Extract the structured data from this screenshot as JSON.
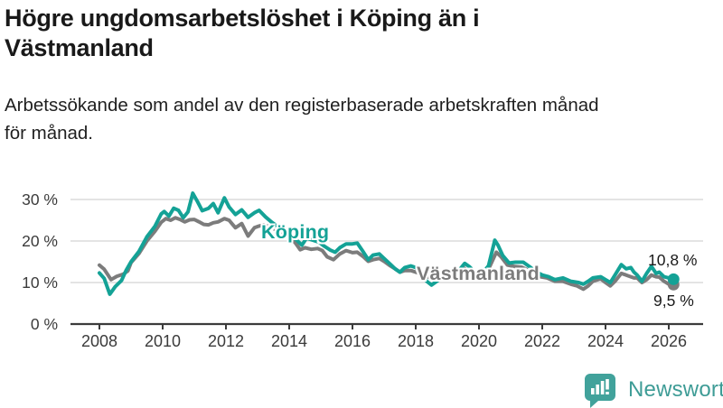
{
  "header": {
    "title_lines": [
      "Högre ungdomsarbetslöshet i Köping än i",
      "Västmanland"
    ],
    "subtitle_lines": [
      "Arbetssökande som andel av den registerbaserade arbetskraften månad",
      "för månad."
    ]
  },
  "footer": {
    "brand": "Newsworthy",
    "icon": "newsworthy-chart-bubble-icon",
    "brand_color": "#3e9c96",
    "icon_color": "#41a29b"
  },
  "chart_data": {
    "type": "line",
    "title": "Högre ungdomsarbetslöshet i Köping än i Västmanland",
    "subtitle": "Arbetssökande som andel av den registerbaserade arbetskraften månad för månad.",
    "xlabel": "",
    "ylabel": "",
    "unit": "%",
    "grid": "horizontal",
    "xlim": [
      2007.9,
      2027.0
    ],
    "ylim": [
      0,
      33
    ],
    "x_ticks": [
      2008,
      2010,
      2012,
      2014,
      2016,
      2018,
      2020,
      2022,
      2024,
      2026
    ],
    "y_ticks": [
      {
        "value": 0,
        "label": "0 %"
      },
      {
        "value": 10,
        "label": "10 %"
      },
      {
        "value": 20,
        "label": "20 %"
      },
      {
        "value": 30,
        "label": "30 %"
      }
    ],
    "colors": {
      "koping": "#14a296",
      "vastmanland": "#7c7c7c",
      "gridline": "#dbdbdb",
      "axis": "#3b3b3b"
    },
    "series": [
      {
        "name": "Västmanland",
        "color": "#7c7c7c",
        "end_label": "9,5 %",
        "points": [
          [
            2008.0,
            14.2
          ],
          [
            2008.15,
            13.2
          ],
          [
            2008.37,
            10.7
          ],
          [
            2008.55,
            11.5
          ],
          [
            2008.75,
            12.0
          ],
          [
            2008.9,
            12.8
          ],
          [
            2009.0,
            14.8
          ],
          [
            2009.25,
            17.0
          ],
          [
            2009.5,
            20.0
          ],
          [
            2009.75,
            22.3
          ],
          [
            2009.95,
            24.5
          ],
          [
            2010.1,
            25.4
          ],
          [
            2010.25,
            25.0
          ],
          [
            2010.4,
            25.6
          ],
          [
            2010.55,
            25.2
          ],
          [
            2010.7,
            24.6
          ],
          [
            2010.85,
            25.1
          ],
          [
            2011.0,
            25.2
          ],
          [
            2011.15,
            24.6
          ],
          [
            2011.3,
            24.0
          ],
          [
            2011.45,
            23.9
          ],
          [
            2011.6,
            24.4
          ],
          [
            2011.75,
            24.6
          ],
          [
            2011.95,
            25.4
          ],
          [
            2012.1,
            25.0
          ],
          [
            2012.3,
            23.2
          ],
          [
            2012.5,
            24.2
          ],
          [
            2012.7,
            21.2
          ],
          [
            2012.9,
            23.2
          ],
          [
            2013.05,
            23.6
          ],
          [
            2013.2,
            23.9
          ],
          [
            2013.35,
            23.5
          ],
          [
            2013.5,
            23.0
          ],
          [
            2013.7,
            22.3
          ],
          [
            2013.9,
            21.5
          ],
          [
            2014.05,
            20.7
          ],
          [
            2014.2,
            19.5
          ],
          [
            2014.35,
            17.9
          ],
          [
            2014.5,
            18.4
          ],
          [
            2014.7,
            18.0
          ],
          [
            2014.9,
            18.2
          ],
          [
            2015.05,
            17.7
          ],
          [
            2015.2,
            16.2
          ],
          [
            2015.4,
            15.5
          ],
          [
            2015.6,
            16.9
          ],
          [
            2015.8,
            17.7
          ],
          [
            2016.0,
            17.2
          ],
          [
            2016.15,
            17.3
          ],
          [
            2016.35,
            16.2
          ],
          [
            2016.5,
            15.1
          ],
          [
            2016.65,
            15.5
          ],
          [
            2016.85,
            15.8
          ],
          [
            2017.0,
            15.1
          ],
          [
            2017.2,
            14.0
          ],
          [
            2017.35,
            13.3
          ],
          [
            2017.5,
            12.5
          ],
          [
            2017.65,
            12.9
          ],
          [
            2017.85,
            12.9
          ],
          [
            2018.0,
            12.5
          ],
          [
            2018.2,
            12.0
          ],
          [
            2018.4,
            11.3
          ],
          [
            2018.55,
            10.8
          ],
          [
            2018.75,
            10.9
          ],
          [
            2018.95,
            11.0
          ],
          [
            2019.15,
            11.0
          ],
          [
            2019.35,
            11.5
          ],
          [
            2019.55,
            13.4
          ],
          [
            2019.7,
            12.6
          ],
          [
            2019.9,
            11.6
          ],
          [
            2020.1,
            11.8
          ],
          [
            2020.3,
            13.2
          ],
          [
            2020.55,
            17.3
          ],
          [
            2020.7,
            16.2
          ],
          [
            2020.9,
            14.2
          ],
          [
            2021.1,
            13.9
          ],
          [
            2021.35,
            13.7
          ],
          [
            2021.55,
            13.0
          ],
          [
            2021.75,
            12.2
          ],
          [
            2021.95,
            11.4
          ],
          [
            2022.15,
            11.1
          ],
          [
            2022.4,
            10.3
          ],
          [
            2022.65,
            10.3
          ],
          [
            2022.9,
            9.6
          ],
          [
            2023.1,
            9.2
          ],
          [
            2023.3,
            8.4
          ],
          [
            2023.45,
            9.2
          ],
          [
            2023.6,
            10.3
          ],
          [
            2023.85,
            10.9
          ],
          [
            2024.0,
            10.0
          ],
          [
            2024.15,
            9.2
          ],
          [
            2024.3,
            10.3
          ],
          [
            2024.5,
            12.2
          ],
          [
            2024.65,
            11.8
          ],
          [
            2024.8,
            11.4
          ],
          [
            2024.9,
            11.1
          ],
          [
            2025.0,
            11.1
          ],
          [
            2025.15,
            10.0
          ],
          [
            2025.3,
            10.7
          ],
          [
            2025.45,
            11.8
          ],
          [
            2025.6,
            11.4
          ],
          [
            2025.7,
            11.3
          ],
          [
            2025.85,
            10.3
          ],
          [
            2026.0,
            9.6
          ],
          [
            2026.15,
            9.5
          ]
        ]
      },
      {
        "name": "Köping",
        "color": "#14a296",
        "end_label": "10,8 %",
        "points": [
          [
            2008.0,
            12.3
          ],
          [
            2008.15,
            11.0
          ],
          [
            2008.33,
            7.2
          ],
          [
            2008.5,
            9.0
          ],
          [
            2008.7,
            10.5
          ],
          [
            2008.85,
            13.0
          ],
          [
            2009.0,
            15.0
          ],
          [
            2009.25,
            17.5
          ],
          [
            2009.5,
            21.0
          ],
          [
            2009.75,
            23.5
          ],
          [
            2009.95,
            26.5
          ],
          [
            2010.05,
            27.1
          ],
          [
            2010.2,
            26.0
          ],
          [
            2010.35,
            27.9
          ],
          [
            2010.5,
            27.4
          ],
          [
            2010.65,
            25.6
          ],
          [
            2010.8,
            27.0
          ],
          [
            2010.95,
            31.5
          ],
          [
            2011.1,
            29.5
          ],
          [
            2011.25,
            27.3
          ],
          [
            2011.45,
            27.9
          ],
          [
            2011.6,
            29.0
          ],
          [
            2011.75,
            26.8
          ],
          [
            2011.95,
            30.4
          ],
          [
            2012.1,
            28.2
          ],
          [
            2012.3,
            26.4
          ],
          [
            2012.5,
            27.5
          ],
          [
            2012.7,
            25.7
          ],
          [
            2012.9,
            26.8
          ],
          [
            2013.05,
            27.4
          ],
          [
            2013.25,
            25.8
          ],
          [
            2013.45,
            24.5
          ],
          [
            2013.65,
            23.4
          ],
          [
            2013.85,
            22.5
          ],
          [
            2014.0,
            22.0
          ],
          [
            2014.2,
            20.5
          ],
          [
            2014.4,
            19.0
          ],
          [
            2014.55,
            20.7
          ],
          [
            2014.75,
            20.2
          ],
          [
            2014.95,
            19.7
          ],
          [
            2015.1,
            18.8
          ],
          [
            2015.3,
            17.8
          ],
          [
            2015.45,
            17.3
          ],
          [
            2015.6,
            18.4
          ],
          [
            2015.8,
            19.3
          ],
          [
            2016.0,
            19.3
          ],
          [
            2016.15,
            19.5
          ],
          [
            2016.35,
            17.3
          ],
          [
            2016.5,
            15.5
          ],
          [
            2016.65,
            16.6
          ],
          [
            2016.85,
            16.9
          ],
          [
            2017.0,
            15.8
          ],
          [
            2017.2,
            14.4
          ],
          [
            2017.35,
            13.3
          ],
          [
            2017.5,
            12.5
          ],
          [
            2017.65,
            13.6
          ],
          [
            2017.85,
            14.0
          ],
          [
            2018.0,
            13.6
          ],
          [
            2018.2,
            11.8
          ],
          [
            2018.35,
            10.3
          ],
          [
            2018.5,
            9.4
          ],
          [
            2018.7,
            10.5
          ],
          [
            2018.9,
            11.2
          ],
          [
            2019.1,
            11.6
          ],
          [
            2019.3,
            12.3
          ],
          [
            2019.55,
            14.6
          ],
          [
            2019.7,
            13.8
          ],
          [
            2019.9,
            12.3
          ],
          [
            2020.1,
            12.2
          ],
          [
            2020.3,
            14.0
          ],
          [
            2020.5,
            20.2
          ],
          [
            2020.6,
            19.0
          ],
          [
            2020.75,
            16.5
          ],
          [
            2020.95,
            14.7
          ],
          [
            2021.15,
            14.9
          ],
          [
            2021.4,
            14.9
          ],
          [
            2021.6,
            13.8
          ],
          [
            2021.8,
            12.6
          ],
          [
            2022.0,
            11.8
          ],
          [
            2022.2,
            11.4
          ],
          [
            2022.4,
            10.7
          ],
          [
            2022.65,
            11.1
          ],
          [
            2022.9,
            10.3
          ],
          [
            2023.15,
            10.0
          ],
          [
            2023.3,
            9.6
          ],
          [
            2023.45,
            10.3
          ],
          [
            2023.6,
            11.1
          ],
          [
            2023.85,
            11.4
          ],
          [
            2024.0,
            10.7
          ],
          [
            2024.15,
            10.0
          ],
          [
            2024.3,
            11.8
          ],
          [
            2024.5,
            14.3
          ],
          [
            2024.65,
            13.3
          ],
          [
            2024.8,
            13.6
          ],
          [
            2024.9,
            12.5
          ],
          [
            2025.0,
            11.8
          ],
          [
            2025.15,
            10.3
          ],
          [
            2025.3,
            12.2
          ],
          [
            2025.45,
            13.9
          ],
          [
            2025.6,
            12.2
          ],
          [
            2025.7,
            12.5
          ],
          [
            2025.85,
            11.4
          ],
          [
            2026.0,
            11.1
          ],
          [
            2026.15,
            10.8
          ]
        ]
      }
    ]
  }
}
